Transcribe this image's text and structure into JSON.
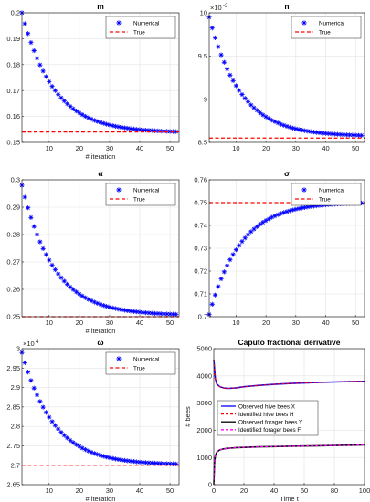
{
  "chart_data": [
    {
      "type": "scatter",
      "title": "m",
      "xlabel": "# iteration",
      "ylabel": "",
      "xlim": [
        1,
        53
      ],
      "ylim": [
        0.15,
        0.2
      ],
      "xticks": [
        10,
        20,
        30,
        40,
        50
      ],
      "yticks": [
        0.15,
        0.16,
        0.17,
        0.18,
        0.19,
        0.2
      ],
      "ytick_labels": [
        "0.15",
        "0.16",
        "0.17",
        "0.18",
        "0.19",
        "0.2"
      ],
      "y_exponent": "",
      "legend": {
        "placement": "top-right",
        "entries": [
          "Numerical",
          "True"
        ]
      },
      "grid": true,
      "series": [
        {
          "name": "Numerical",
          "marker": "asterisk",
          "color": "#0000ff",
          "start": 0.2,
          "end": 0.1538,
          "decay": 10.5,
          "iterations": [
            1,
            52
          ]
        },
        {
          "name": "True",
          "style": "dashed",
          "color": "#ff0000",
          "value": 0.154
        }
      ]
    },
    {
      "type": "scatter",
      "title": "n",
      "xlabel": "",
      "ylabel": "",
      "xlim": [
        1,
        53
      ],
      "ylim": [
        0.0085,
        0.01
      ],
      "xticks": [
        10,
        20,
        30,
        40,
        50
      ],
      "yticks": [
        0.0085,
        0.009,
        0.0095,
        0.01
      ],
      "ytick_labels": [
        "8.5",
        "9",
        "9.5",
        "10"
      ],
      "y_exponent": "-3",
      "legend": {
        "placement": "top-right",
        "entries": [
          "Numerical",
          "True"
        ]
      },
      "grid": true,
      "series": [
        {
          "name": "Numerical",
          "marker": "asterisk",
          "color": "#0000ff",
          "start": 0.00995,
          "end": 0.00857,
          "decay": 10.5,
          "iterations": [
            1,
            52
          ]
        },
        {
          "name": "True",
          "style": "dashed",
          "color": "#ff0000",
          "value": 0.00855
        }
      ]
    },
    {
      "type": "scatter",
      "title": "α",
      "xlabel": "# iteration",
      "ylabel": "",
      "xlim": [
        1,
        53
      ],
      "ylim": [
        0.25,
        0.3
      ],
      "xticks": [
        10,
        20,
        30,
        40,
        50
      ],
      "yticks": [
        0.25,
        0.26,
        0.27,
        0.28,
        0.29,
        0.3
      ],
      "ytick_labels": [
        "0.25",
        "0.26",
        "0.27",
        "0.28",
        "0.29",
        "0.3"
      ],
      "y_exponent": "",
      "legend": {
        "placement": "top-right",
        "entries": [
          "Numerical",
          "True"
        ]
      },
      "grid": true,
      "series": [
        {
          "name": "Numerical",
          "marker": "asterisk",
          "color": "#0000ff",
          "start": 0.298,
          "end": 0.2505,
          "decay": 10.5,
          "iterations": [
            1,
            52
          ]
        },
        {
          "name": "True",
          "style": "dashed",
          "color": "#ff0000",
          "value": 0.25
        }
      ]
    },
    {
      "type": "scatter",
      "title": "σ",
      "xlabel": "",
      "ylabel": "",
      "xlim": [
        1,
        53
      ],
      "ylim": [
        0.7,
        0.76
      ],
      "xticks": [
        10,
        20,
        30,
        40,
        50
      ],
      "yticks": [
        0.7,
        0.71,
        0.72,
        0.73,
        0.74,
        0.75,
        0.76
      ],
      "ytick_labels": [
        "0.7",
        "0.71",
        "0.72",
        "0.73",
        "0.74",
        "0.75",
        "0.76"
      ],
      "y_exponent": "",
      "legend": {
        "placement": "top-right",
        "entries": [
          "Numerical",
          "True"
        ]
      },
      "grid": true,
      "series": [
        {
          "name": "Numerical",
          "marker": "asterisk",
          "color": "#0000ff",
          "start": 0.701,
          "end": 0.7502,
          "decay": 10.5,
          "iterations": [
            1,
            52
          ]
        },
        {
          "name": "True",
          "style": "dashed",
          "color": "#ff0000",
          "value": 0.75
        }
      ]
    },
    {
      "type": "scatter",
      "title": "ω",
      "xlabel": "# iteration",
      "ylabel": "",
      "xlim": [
        1,
        53
      ],
      "ylim": [
        26500,
        30000
      ],
      "xticks": [
        10,
        20,
        30,
        40,
        50
      ],
      "yticks": [
        26500,
        27000,
        27500,
        28000,
        28500,
        29000,
        29500,
        30000
      ],
      "ytick_labels": [
        "2.65",
        "2.7",
        "2.75",
        "2.8",
        "2.85",
        "2.9",
        "2.95",
        "3"
      ],
      "y_exponent": "4",
      "legend": {
        "placement": "top-right",
        "entries": [
          "Numerical",
          "True"
        ]
      },
      "grid": true,
      "series": [
        {
          "name": "Numerical",
          "marker": "asterisk",
          "color": "#0000ff",
          "start": 29900,
          "end": 27010,
          "decay": 10.5,
          "iterations": [
            1,
            52
          ]
        },
        {
          "name": "True",
          "style": "dashed",
          "color": "#ff0000",
          "value": 27000
        }
      ]
    },
    {
      "type": "line",
      "title": "Caputo fractional derivative",
      "xlabel": "Time t",
      "ylabel": "# bees",
      "xlim": [
        0,
        100
      ],
      "ylim": [
        0,
        5000
      ],
      "xticks": [
        0,
        20,
        40,
        60,
        80,
        100
      ],
      "yticks": [
        0,
        1000,
        2000,
        3000,
        4000,
        5000
      ],
      "ytick_labels": [
        "0",
        "1000",
        "2000",
        "3000",
        "4000",
        "5000"
      ],
      "y_exponent": "",
      "legend": {
        "placement": "inside-center",
        "entries": [
          "Observed hive bees X",
          "Identified hive bees H",
          "Observed forager bees Y",
          "Identified forager bees F"
        ]
      },
      "grid": true,
      "series": [
        {
          "name": "Observed hive bees X",
          "style": "solid",
          "color": "#0000ff",
          "x": [
            0,
            1,
            2,
            4,
            7,
            10,
            15,
            20,
            30,
            40,
            50,
            60,
            70,
            80,
            90,
            100
          ],
          "y": [
            4600,
            3900,
            3700,
            3600,
            3550,
            3540,
            3560,
            3600,
            3650,
            3690,
            3720,
            3740,
            3760,
            3775,
            3790,
            3800
          ]
        },
        {
          "name": "Identified hive bees H",
          "style": "dashed",
          "color": "#ff0000",
          "x": [
            0,
            1,
            2,
            4,
            7,
            10,
            15,
            20,
            30,
            40,
            50,
            60,
            70,
            80,
            90,
            100
          ],
          "y": [
            4600,
            3900,
            3700,
            3600,
            3550,
            3540,
            3560,
            3600,
            3650,
            3690,
            3720,
            3740,
            3760,
            3775,
            3790,
            3800
          ]
        },
        {
          "name": "Observed forager bees Y",
          "style": "solid",
          "color": "#000000",
          "x": [
            0,
            0.5,
            1,
            2,
            4,
            7,
            10,
            15,
            20,
            30,
            40,
            50,
            60,
            70,
            80,
            90,
            100
          ],
          "y": [
            0,
            800,
            1050,
            1200,
            1280,
            1320,
            1340,
            1360,
            1370,
            1390,
            1400,
            1410,
            1420,
            1430,
            1440,
            1450,
            1460
          ]
        },
        {
          "name": "Identified forager bees F",
          "style": "dashed",
          "color": "#ff00ff",
          "x": [
            0,
            0.5,
            1,
            2,
            4,
            7,
            10,
            15,
            20,
            30,
            40,
            50,
            60,
            70,
            80,
            90,
            100
          ],
          "y": [
            0,
            800,
            1050,
            1200,
            1280,
            1320,
            1340,
            1360,
            1370,
            1390,
            1400,
            1410,
            1420,
            1430,
            1440,
            1450,
            1460
          ]
        }
      ]
    }
  ]
}
